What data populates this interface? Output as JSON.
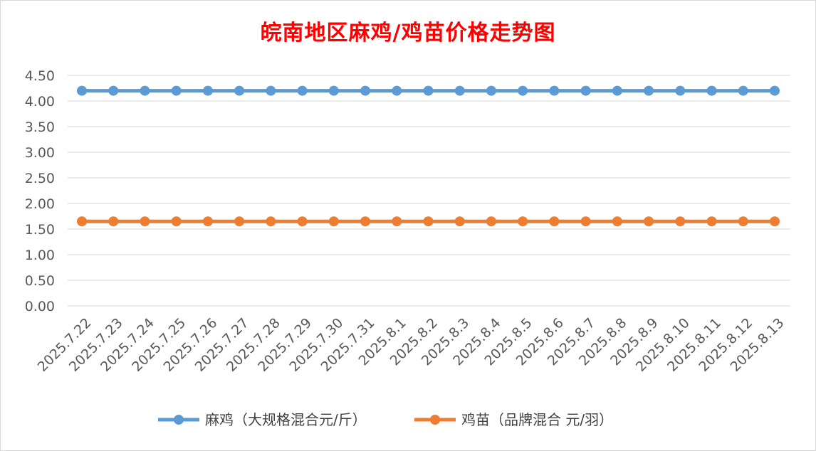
{
  "chart_data": {
    "type": "line",
    "title": "皖南地区麻鸡/鸡苗价格走势图",
    "categories": [
      "2025.7.22",
      "2025.7.23",
      "2025.7.24",
      "2025.7.25",
      "2025.7.26",
      "2025.7.27",
      "2025.7.28",
      "2025.7.29",
      "2025.7.30",
      "2025.7.31",
      "2025.8.1",
      "2025.8.2",
      "2025.8.3",
      "2025.8.4",
      "2025.8.5",
      "2025.8.6",
      "2025.8.7",
      "2025.8.8",
      "2025.8.9",
      "2025.8.10",
      "2025.8.11",
      "2025.8.12",
      "2025.8.13"
    ],
    "series": [
      {
        "name": "麻鸡（大规格混合元/斤）",
        "color": "#5b9bd5",
        "values": [
          4.2,
          4.2,
          4.2,
          4.2,
          4.2,
          4.2,
          4.2,
          4.2,
          4.2,
          4.2,
          4.2,
          4.2,
          4.2,
          4.2,
          4.2,
          4.2,
          4.2,
          4.2,
          4.2,
          4.2,
          4.2,
          4.2,
          4.2
        ]
      },
      {
        "name": "鸡苗（品牌混合 元/羽）",
        "color": "#ed7d31",
        "values": [
          1.65,
          1.65,
          1.65,
          1.65,
          1.65,
          1.65,
          1.65,
          1.65,
          1.65,
          1.65,
          1.65,
          1.65,
          1.65,
          1.65,
          1.65,
          1.65,
          1.65,
          1.65,
          1.65,
          1.65,
          1.65,
          1.65,
          1.65
        ]
      }
    ],
    "y_ticks": [
      "0.00",
      "0.50",
      "1.00",
      "1.50",
      "2.00",
      "2.50",
      "3.00",
      "3.50",
      "4.00",
      "4.50"
    ],
    "ylim": [
      0,
      4.5
    ],
    "grid": true,
    "legend": "bottom",
    "title_color": "#ff0000"
  }
}
